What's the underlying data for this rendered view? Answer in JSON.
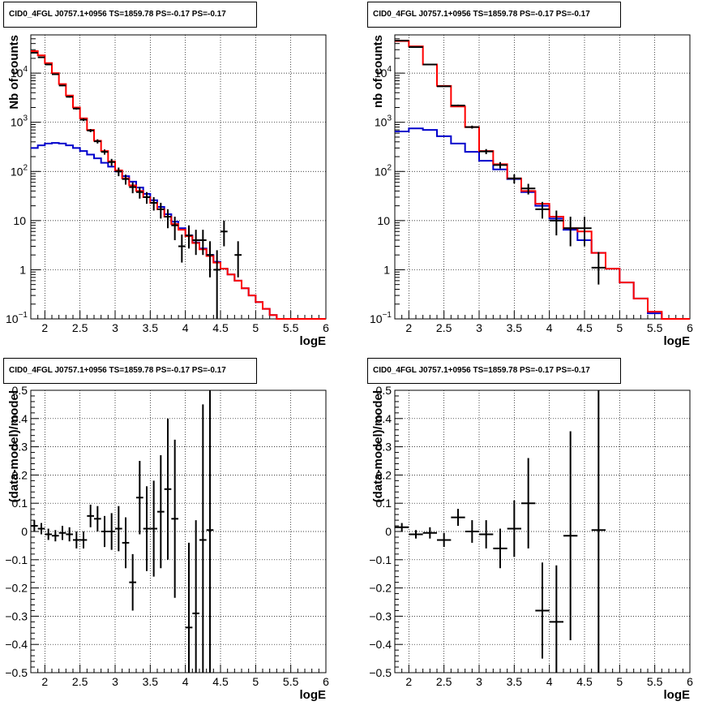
{
  "chart_data": [
    {
      "type": "line",
      "title": "CID0_4FGL J0757.1+0956 TS=1859.78 PS=-0.17 PS=-0.17",
      "xlabel": "logE",
      "ylabel": "Nb of counts",
      "log_y": true,
      "xlim": [
        1.8,
        6
      ],
      "ylim": [
        0.1,
        60000
      ],
      "x_ticks": [
        "2",
        "2.5",
        "3",
        "3.5",
        "4",
        "4.5",
        "5",
        "5.5",
        "6"
      ],
      "y_ticks": [
        {
          "value": 0.1,
          "label": "10",
          "exp": "−1"
        },
        {
          "value": 1,
          "label": "1",
          "exp": ""
        },
        {
          "value": 10,
          "label": "10",
          "exp": ""
        },
        {
          "value": 100,
          "label": "10",
          "exp": "2"
        },
        {
          "value": 1000,
          "label": "10",
          "exp": "3"
        },
        {
          "value": 10000,
          "label": "10",
          "exp": "4"
        }
      ],
      "grid": true,
      "colors": {
        "total_model": "#ff0000",
        "component": "#0000cc",
        "data": "#000000"
      },
      "bin_width": 0.1,
      "series": [
        {
          "style": "red-step",
          "x": [
            1.8,
            1.9,
            2.0,
            2.1,
            2.2,
            2.3,
            2.4,
            2.5,
            2.6,
            2.7,
            2.8,
            2.9,
            3.0,
            3.1,
            3.2,
            3.3,
            3.4,
            3.5,
            3.6,
            3.7,
            3.8,
            3.9,
            4.0,
            4.1,
            4.2,
            4.3,
            4.4,
            4.5,
            4.6,
            4.7,
            4.8,
            4.9,
            5.0,
            5.1,
            5.2,
            5.3,
            5.4,
            5.5,
            5.6,
            5.7,
            5.8,
            5.9
          ],
          "values": [
            28000,
            23000,
            16000,
            10000,
            6000,
            3500,
            2000,
            1200,
            700,
            420,
            260,
            160,
            105,
            72,
            52,
            40,
            30,
            23,
            17,
            12,
            8.5,
            6.5,
            4.8,
            3.5,
            2.6,
            1.9,
            1.4,
            1.05,
            0.8,
            0.6,
            0.42,
            0.3,
            0.22,
            0.16,
            0.12,
            0.1,
            0.09,
            0.08,
            0.07,
            0.07,
            0.07,
            0.07
          ]
        },
        {
          "style": "blue-step",
          "x": [
            1.8,
            1.9,
            2.0,
            2.1,
            2.2,
            2.3,
            2.4,
            2.5,
            2.6,
            2.7,
            2.8,
            2.9,
            3.0,
            3.1,
            3.2,
            3.3,
            3.4,
            3.5,
            3.6,
            3.7,
            3.8,
            3.9,
            4.0,
            4.1,
            4.2,
            4.3,
            4.4,
            4.5,
            4.6,
            4.7,
            4.8,
            4.9,
            5.0,
            5.1,
            5.2,
            5.3,
            5.4,
            5.5,
            5.6,
            5.7,
            5.8,
            5.9
          ],
          "values": [
            300,
            340,
            370,
            380,
            370,
            340,
            300,
            260,
            220,
            185,
            150,
            125,
            100,
            80,
            62,
            47,
            35,
            26,
            19,
            13.5,
            9.5,
            7,
            5,
            3.6,
            2.7,
            2,
            1.45,
            1.05,
            0.8,
            0.6,
            0.42,
            0.3,
            0.22,
            0.16,
            0.12,
            0.1,
            0.09,
            0.08,
            0.07,
            0.07,
            0.07,
            0.07
          ]
        },
        {
          "style": "data-points",
          "x": [
            1.85,
            1.95,
            2.05,
            2.15,
            2.25,
            2.35,
            2.45,
            2.55,
            2.65,
            2.75,
            2.85,
            2.95,
            3.05,
            3.15,
            3.25,
            3.35,
            3.45,
            3.55,
            3.65,
            3.75,
            3.85,
            3.95,
            4.05,
            4.15,
            4.25,
            4.35,
            4.45,
            4.55,
            4.75
          ],
          "values": [
            26000,
            21000,
            15000,
            9500,
            5600,
            3300,
            1900,
            1130,
            680,
            410,
            250,
            155,
            100,
            70,
            48,
            38,
            30,
            23,
            17,
            12,
            8,
            3,
            5,
            4,
            4,
            2,
            1,
            6,
            2
          ],
          "err_low": [
            300,
            280,
            250,
            200,
            150,
            120,
            90,
            70,
            50,
            40,
            30,
            25,
            20,
            16,
            12,
            10,
            8,
            7,
            6,
            5,
            4,
            1.6,
            2.3,
            2,
            2,
            1.3,
            0.9,
            3,
            1.3
          ],
          "err_high": [
            300,
            280,
            250,
            200,
            150,
            120,
            90,
            70,
            50,
            40,
            30,
            25,
            20,
            16,
            12,
            10,
            8,
            7,
            6,
            5,
            4,
            2.2,
            3,
            2.5,
            2.5,
            1.8,
            1.5,
            4,
            1.8
          ]
        }
      ]
    },
    {
      "type": "line",
      "title": "CID0_4FGL J0757.1+0956 TS=1859.78 PS=-0.17 PS=-0.17",
      "xlabel": "logE",
      "ylabel": "nb of counts",
      "log_y": true,
      "xlim": [
        1.8,
        6
      ],
      "ylim": [
        0.1,
        60000
      ],
      "x_ticks": [
        "2",
        "2.5",
        "3",
        "3.5",
        "4",
        "4.5",
        "5",
        "5.5",
        "6"
      ],
      "y_ticks": [
        {
          "value": 0.1,
          "label": "10",
          "exp": "−1"
        },
        {
          "value": 1,
          "label": "1",
          "exp": ""
        },
        {
          "value": 10,
          "label": "10",
          "exp": ""
        },
        {
          "value": 100,
          "label": "10",
          "exp": "2"
        },
        {
          "value": 1000,
          "label": "10",
          "exp": "3"
        },
        {
          "value": 10000,
          "label": "10",
          "exp": "4"
        }
      ],
      "grid": true,
      "colors": {
        "total_model": "#ff0000",
        "component": "#0000cc",
        "data": "#000000"
      },
      "bin_width": 0.2,
      "series": [
        {
          "style": "red-step",
          "x": [
            1.8,
            2.0,
            2.2,
            2.4,
            2.6,
            2.8,
            3.0,
            3.2,
            3.4,
            3.6,
            3.8,
            4.0,
            4.2,
            4.4,
            4.6,
            4.8,
            5.0,
            5.2,
            5.4,
            5.6,
            5.8
          ],
          "values": [
            45000,
            35000,
            15000,
            5500,
            2100,
            800,
            260,
            140,
            72,
            40,
            22,
            12,
            7,
            6,
            2.2,
            1.05,
            0.55,
            0.26,
            0.14,
            0.08,
            0.08
          ]
        },
        {
          "style": "blue-step",
          "x": [
            1.8,
            2.0,
            2.2,
            2.4,
            2.6,
            2.8,
            3.0,
            3.2,
            3.4,
            3.6,
            3.8,
            4.0,
            4.2,
            4.4,
            4.6,
            4.8,
            5.0,
            5.2,
            5.4,
            5.6,
            5.8
          ],
          "values": [
            650,
            750,
            700,
            520,
            370,
            250,
            165,
            110,
            70,
            38,
            20,
            11,
            6.5,
            4,
            2.2,
            1.05,
            0.55,
            0.26,
            0.13,
            0.08,
            0.08
          ]
        },
        {
          "style": "data-points",
          "x": [
            1.9,
            2.1,
            2.3,
            2.5,
            2.7,
            2.9,
            3.1,
            3.3,
            3.5,
            3.7,
            3.9,
            4.1,
            4.3,
            4.5,
            4.7
          ],
          "values": [
            46000,
            34000,
            15000,
            5400,
            2200,
            800,
            255,
            135,
            72,
            45,
            17,
            10,
            7,
            7,
            1.1
          ],
          "err_low": [
            400,
            350,
            230,
            140,
            90,
            55,
            30,
            20,
            15,
            11,
            6,
            5,
            4,
            4,
            0.6
          ],
          "err_high": [
            400,
            350,
            230,
            140,
            90,
            55,
            30,
            20,
            15,
            11,
            7,
            6,
            5,
            5,
            1.2
          ]
        }
      ]
    },
    {
      "type": "scatter",
      "title": "CID0_4FGL J0757.1+0956 TS=1859.78 PS=-0.17 PS=-0.17",
      "xlabel": "logE",
      "ylabel": "(data-model)/model",
      "log_y": false,
      "xlim": [
        1.8,
        6
      ],
      "ylim": [
        -0.5,
        0.5
      ],
      "x_ticks": [
        "2",
        "2.5",
        "3",
        "3.5",
        "4",
        "4.5",
        "5",
        "5.5",
        "6"
      ],
      "y_tick_labels": [
        "−0.5",
        "−0.4",
        "−0.3",
        "−0.2",
        "−0.1",
        "0",
        "0.1",
        "0.2",
        "0.3",
        "0.4",
        "0.5"
      ],
      "grid": true,
      "bin_width": 0.1,
      "points": {
        "x": [
          1.85,
          1.95,
          2.05,
          2.15,
          2.25,
          2.35,
          2.45,
          2.55,
          2.65,
          2.75,
          2.85,
          2.95,
          3.05,
          3.15,
          3.25,
          3.35,
          3.45,
          3.55,
          3.65,
          3.75,
          3.85,
          4.05,
          4.15,
          4.25,
          4.35
        ],
        "y": [
          0.02,
          0.01,
          -0.01,
          -0.015,
          -0.005,
          -0.01,
          -0.03,
          -0.03,
          0.055,
          0.045,
          0,
          0,
          0.01,
          -0.04,
          -0.18,
          0.12,
          0.01,
          0.01,
          0.07,
          0.15,
          0.045,
          -0.34,
          -0.29,
          -0.03,
          0.005
        ],
        "err": [
          0.02,
          0.02,
          0.02,
          0.02,
          0.025,
          0.025,
          0.03,
          0.03,
          0.04,
          0.045,
          0.055,
          0.065,
          0.08,
          0.09,
          0.1,
          0.13,
          0.15,
          0.17,
          0.2,
          0.25,
          0.28,
          0.3,
          0.33,
          0.48,
          0.65
        ]
      }
    },
    {
      "type": "scatter",
      "title": "CID0_4FGL J0757.1+0956 TS=1859.78 PS=-0.17 PS=-0.17",
      "xlabel": "logE",
      "ylabel": "(data-model)/model",
      "log_y": false,
      "xlim": [
        1.8,
        6
      ],
      "ylim": [
        -0.5,
        0.5
      ],
      "x_ticks": [
        "2",
        "2.5",
        "3",
        "3.5",
        "4",
        "4.5",
        "5",
        "5.5",
        "6"
      ],
      "y_tick_labels": [
        "−0.5",
        "−0.4",
        "−0.3",
        "−0.2",
        "−0.1",
        "0",
        "0.1",
        "0.2",
        "0.3",
        "0.4",
        "0.5"
      ],
      "grid": true,
      "bin_width": 0.2,
      "points": {
        "x": [
          1.9,
          2.1,
          2.3,
          2.5,
          2.7,
          2.9,
          3.1,
          3.3,
          3.5,
          3.7,
          3.9,
          4.1,
          4.3,
          4.7
        ],
        "y": [
          0.015,
          -0.01,
          -0.005,
          -0.03,
          0.05,
          0,
          -0.01,
          -0.06,
          0.01,
          0.1,
          -0.28,
          -0.32,
          -0.015,
          0.005
        ],
        "err": [
          0.015,
          0.015,
          0.02,
          0.025,
          0.03,
          0.04,
          0.05,
          0.07,
          0.1,
          0.16,
          0.17,
          0.2,
          0.37,
          0.6
        ]
      }
    }
  ]
}
